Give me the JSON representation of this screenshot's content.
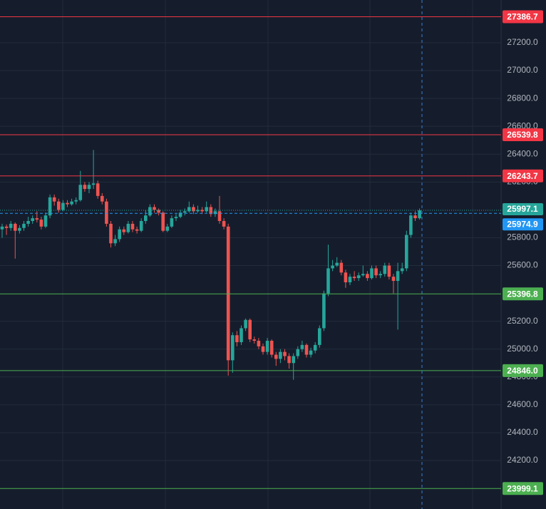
{
  "chart_data": {
    "type": "candlestick",
    "ylim": [
      23852,
      27507
    ],
    "yticks": [
      {
        "value": 24200,
        "label": "24200.0"
      },
      {
        "value": 24400,
        "label": "24400.0"
      },
      {
        "value": 24600,
        "label": "24600.0"
      },
      {
        "value": 24800,
        "label": "24800.0"
      },
      {
        "value": 25000,
        "label": "25000.0"
      },
      {
        "value": 25200,
        "label": "25200.0"
      },
      {
        "value": 25600,
        "label": "25600.0"
      },
      {
        "value": 25800,
        "label": "25800.0"
      },
      {
        "value": 26200,
        "label": "26200.0"
      },
      {
        "value": 26400,
        "label": "26400.0"
      },
      {
        "value": 26600,
        "label": "26600.0"
      },
      {
        "value": 26800,
        "label": "26800.0"
      },
      {
        "value": 27000,
        "label": "27000.0"
      },
      {
        "value": 27200,
        "label": "27200.0"
      }
    ],
    "grid": true,
    "series": {
      "up_color": "#26a69a",
      "down_color": "#ef5350",
      "open": [
        25860,
        25880,
        25870,
        25900,
        25850,
        25870,
        25900,
        25920,
        25940,
        25930,
        25880,
        25960,
        26090,
        26060,
        26000,
        26050,
        26040,
        26060,
        26070,
        26180,
        26150,
        26180,
        26190,
        26100,
        26060,
        25900,
        25760,
        25790,
        25860,
        25840,
        25900,
        25860,
        25850,
        25920,
        25960,
        26020,
        26000,
        25980,
        25850,
        25880,
        25940,
        25950,
        25980,
        25990,
        26020,
        25990,
        26000,
        25990,
        26020,
        25970,
        25990,
        25920,
        25880,
        24920,
        25100,
        25050,
        25150,
        25210,
        25070,
        25060,
        25020,
        24980,
        25060,
        24960,
        24930,
        24980,
        24950,
        24900,
        24950,
        25000,
        25030,
        24960,
        24990,
        25030,
        25150,
        25400,
        25580,
        25600,
        25620,
        25550,
        25480,
        25520,
        25510,
        25530,
        25540,
        25510,
        25580,
        25530,
        25540,
        25600,
        25520,
        25490,
        25560,
        25580,
        25820,
        25960,
        25940
      ],
      "high": [
        25900,
        25895,
        25920,
        25910,
        25890,
        25920,
        25950,
        25960,
        25990,
        25950,
        25980,
        26110,
        26110,
        26080,
        26070,
        26070,
        26080,
        26090,
        26280,
        26200,
        26200,
        26430,
        26210,
        26120,
        26080,
        25920,
        25820,
        25880,
        25880,
        25920,
        25920,
        25880,
        25940,
        26000,
        26040,
        26040,
        26010,
        25990,
        25900,
        25960,
        25970,
        26000,
        26010,
        26060,
        26040,
        26030,
        26020,
        26060,
        26040,
        26010,
        26100,
        25940,
        25900,
        25120,
        25130,
        25170,
        25220,
        25220,
        25090,
        25080,
        25040,
        25080,
        25070,
        24980,
        25000,
        25000,
        24970,
        24970,
        25020,
        25060,
        25040,
        25010,
        25050,
        25170,
        25420,
        25750,
        25640,
        25660,
        25640,
        25570,
        25540,
        25560,
        25550,
        25600,
        25560,
        25600,
        25600,
        25560,
        25620,
        25620,
        25540,
        25620,
        25620,
        25850,
        25980,
        25990,
        26010
      ],
      "low": [
        25800,
        25820,
        25850,
        25650,
        25830,
        25850,
        25880,
        25900,
        25910,
        25860,
        25870,
        25940,
        26030,
        25980,
        25990,
        26020,
        26030,
        26040,
        26060,
        26130,
        26120,
        26150,
        26080,
        26040,
        25880,
        25730,
        25740,
        25770,
        25820,
        25830,
        25840,
        25830,
        25840,
        25900,
        25950,
        25980,
        25960,
        25840,
        25840,
        25870,
        25920,
        25940,
        25960,
        25980,
        25970,
        25980,
        25970,
        25980,
        25950,
        25950,
        25900,
        25860,
        24810,
        24830,
        25020,
        25030,
        25130,
        25050,
        25040,
        25000,
        24960,
        24960,
        24940,
        24880,
        24900,
        24920,
        24860,
        24780,
        24930,
        24980,
        24940,
        24940,
        24970,
        25010,
        25130,
        25380,
        25560,
        25590,
        25530,
        25440,
        25460,
        25490,
        25490,
        25520,
        25490,
        25500,
        25510,
        25510,
        25520,
        25500,
        25400,
        25140,
        25540,
        25560,
        25800,
        25920,
        25930
      ],
      "close": [
        25880,
        25870,
        25900,
        25850,
        25870,
        25900,
        25920,
        25940,
        25930,
        25880,
        25960,
        26090,
        26060,
        26000,
        26050,
        26040,
        26060,
        26070,
        26180,
        26150,
        26180,
        26190,
        26100,
        26060,
        25900,
        25760,
        25790,
        25860,
        25840,
        25900,
        25860,
        25850,
        25920,
        25960,
        26020,
        26000,
        25980,
        25850,
        25880,
        25940,
        25950,
        25980,
        25990,
        26020,
        25990,
        26000,
        25990,
        26020,
        25970,
        25990,
        25920,
        25880,
        24920,
        25100,
        25050,
        25150,
        25210,
        25070,
        25060,
        25020,
        24980,
        25060,
        24960,
        24930,
        24980,
        24950,
        24900,
        24950,
        25000,
        25030,
        24960,
        24990,
        25030,
        25150,
        25400,
        25580,
        25600,
        25620,
        25550,
        25480,
        25520,
        25510,
        25530,
        25540,
        25510,
        25580,
        25530,
        25540,
        25600,
        25520,
        25490,
        25560,
        25580,
        25820,
        25960,
        25940,
        25997.1
      ]
    },
    "levels": {
      "values": [
        27386.7,
        26539.8,
        26243.7,
        25396.8,
        24846.0,
        23999.1
      ],
      "value_labels": [
        "27386.7",
        "26539.8",
        "26243.7",
        "25396.8",
        "24846.0",
        "23999.1"
      ],
      "colors": [
        "#f23645",
        "#f23645",
        "#f23645",
        "#4caf50",
        "#4caf50",
        "#4caf50"
      ]
    },
    "price_lines": {
      "values": [
        25997.1,
        25974.9
      ],
      "colors": [
        "#26a69a",
        "#2196f3"
      ]
    }
  }
}
